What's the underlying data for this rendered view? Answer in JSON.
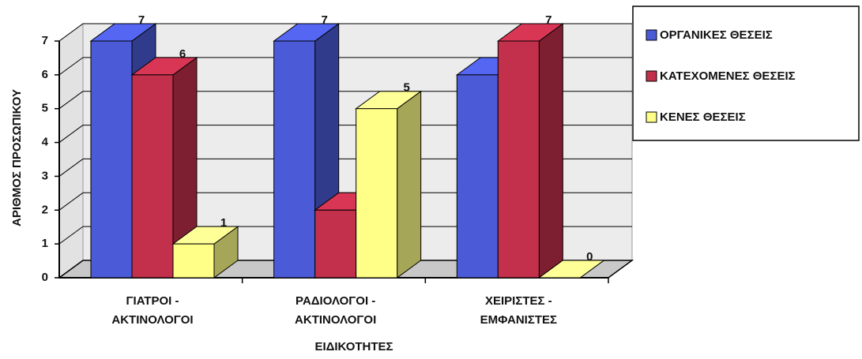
{
  "chart_data": {
    "type": "bar3d",
    "y_label": "ΑΡΙΘΜΟΣ ΠΡΟΣΩΠΙΚΟΥ",
    "x_label": "ΕΙΔΙΚΟΤΗΤΕΣ",
    "categories": [
      [
        "ΓΙΑΤΡΟΙ -",
        "ΑΚΤΙΝΟΛΟΓΟΙ"
      ],
      [
        "ΡΑΔΙΟΛΟΓΟΙ -",
        "ΑΚΤΙΝΟΛΟΓΟΙ"
      ],
      [
        "ΧΕΙΡΙΣΤΕΣ -",
        "ΕΜΦΑΝΙΣΤΕΣ"
      ]
    ],
    "series": [
      {
        "name": "ΟΡΓΑΝΙΚΕΣ ΘΕΣΕΙΣ",
        "color": "#4b5bd8",
        "values": [
          7,
          7,
          6
        ]
      },
      {
        "name": "ΚΑΤΕΧΟΜΕΝΕΣ ΘΕΣΕΙΣ",
        "color": "#c2304c",
        "values": [
          6,
          2,
          7
        ]
      },
      {
        "name": "ΚΕΝΕΣ ΘΕΣΕΙΣ",
        "color": "#ffff88",
        "values": [
          1,
          5,
          0
        ]
      }
    ],
    "ylim": [
      0,
      7
    ],
    "yticks": [
      0,
      1,
      2,
      3,
      4,
      5,
      6,
      7
    ],
    "grid": true,
    "legend": "right"
  }
}
